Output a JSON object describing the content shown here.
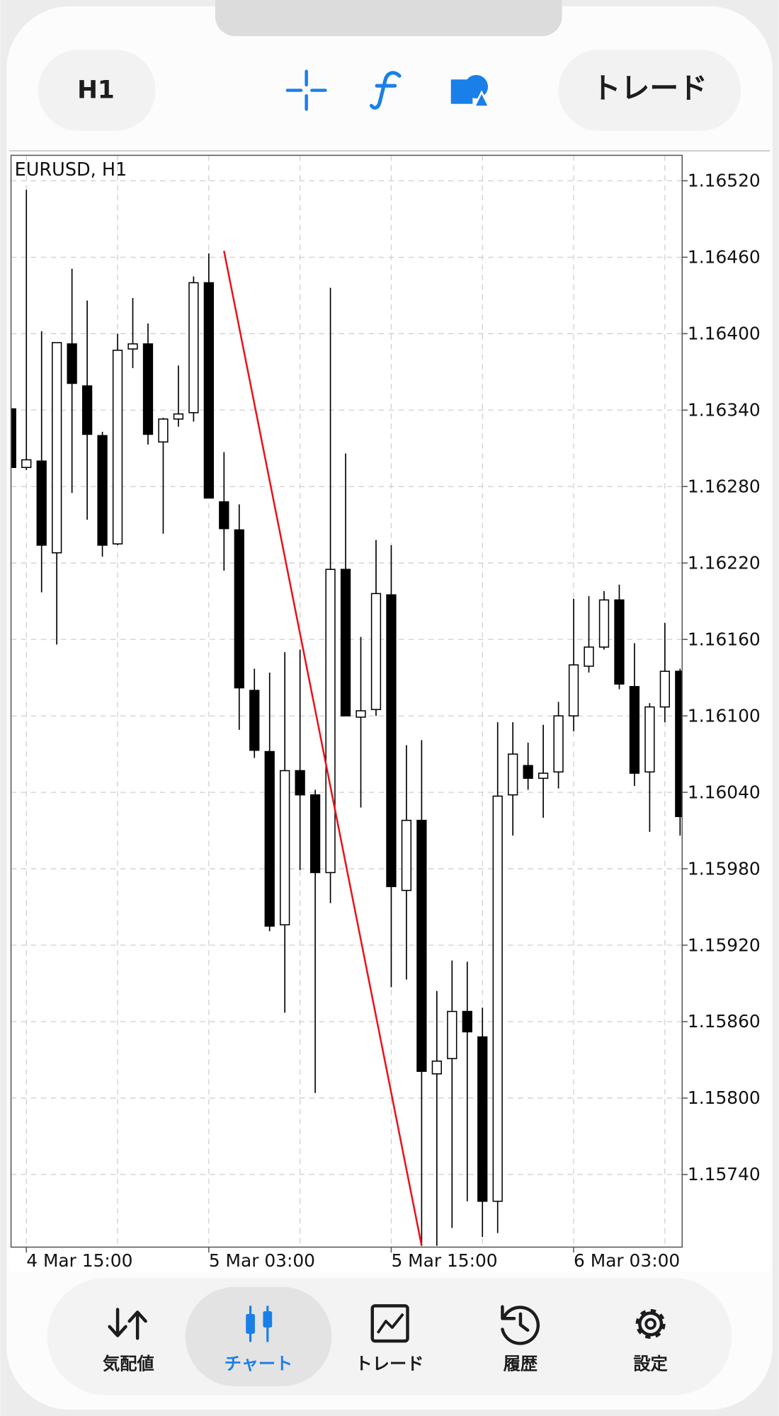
{
  "ui": {
    "timeframe_button": "H1",
    "trade_button": "トレード",
    "tabs": [
      {
        "label": "気配値",
        "active": false
      },
      {
        "label": "チャート",
        "active": true
      },
      {
        "label": "トレード",
        "active": false
      },
      {
        "label": "履歴",
        "active": false
      },
      {
        "label": "設定",
        "active": false
      }
    ]
  },
  "chart_data": {
    "type": "candlestick",
    "title": "EURUSD, H1",
    "categories": [
      null,
      "4 Mar 15:00",
      null,
      null,
      null,
      null,
      null,
      null,
      null,
      null,
      null,
      null,
      null,
      "5 Mar 03:00",
      null,
      null,
      null,
      null,
      null,
      null,
      null,
      null,
      null,
      null,
      null,
      "5 Mar 15:00",
      null,
      null,
      null,
      null,
      null,
      null,
      null,
      null,
      null,
      null,
      null,
      "6 Mar 03:00",
      null,
      null,
      null,
      null,
      null,
      null,
      null
    ],
    "open": [
      1.16341,
      1.16295,
      1.163,
      1.16228,
      1.16392,
      1.16359,
      1.1632,
      1.16235,
      1.16388,
      1.16392,
      1.16315,
      1.16333,
      1.16338,
      1.1644,
      1.16268,
      1.16246,
      1.1612,
      1.16072,
      1.15936,
      1.16057,
      1.16038,
      1.15977,
      1.16215,
      1.16099,
      1.16105,
      1.16195,
      1.15963,
      1.16018,
      1.15819,
      1.15831,
      1.15868,
      1.15848,
      1.15719,
      1.16038,
      1.16061,
      1.16051,
      1.16056,
      1.161,
      1.16139,
      1.16154,
      1.16191,
      1.16123,
      1.16056,
      1.16107,
      1.16135
    ],
    "high": [
      1.16341,
      1.16513,
      1.16402,
      1.16393,
      1.16451,
      1.16426,
      1.16323,
      1.164,
      1.16428,
      1.16408,
      1.16334,
      1.16375,
      1.16445,
      1.16463,
      1.16307,
      1.16266,
      1.16137,
      1.16134,
      1.1615,
      1.16152,
      1.16042,
      1.16436,
      1.16306,
      1.16162,
      1.16238,
      1.16234,
      1.16077,
      1.16081,
      1.15884,
      1.15908,
      1.15907,
      1.15871,
      1.16095,
      1.16095,
      1.16079,
      1.16093,
      1.16111,
      1.16192,
      1.16194,
      1.16198,
      1.16203,
      1.16157,
      1.1611,
      1.16173,
      1.16137
    ],
    "low": [
      1.16295,
      1.16293,
      1.16197,
      1.16156,
      1.16275,
      1.16254,
      1.16225,
      1.16234,
      1.16373,
      1.16313,
      1.16243,
      1.16327,
      1.16331,
      1.16271,
      1.16214,
      1.16089,
      1.16067,
      1.15931,
      1.15867,
      1.15979,
      1.15804,
      1.15953,
      1.161,
      1.16028,
      1.161,
      1.15887,
      1.15893,
      1.15684,
      1.15684,
      1.15698,
      1.15719,
      1.15691,
      1.15694,
      1.16006,
      1.16042,
      1.1602,
      1.16043,
      1.16088,
      1.16134,
      1.16152,
      1.16121,
      1.16045,
      1.16009,
      1.16095,
      1.16006
    ],
    "close": [
      1.16295,
      1.16301,
      1.16234,
      1.16393,
      1.16361,
      1.16321,
      1.16234,
      1.16387,
      1.16392,
      1.16321,
      1.16333,
      1.16337,
      1.1644,
      1.16271,
      1.16247,
      1.16122,
      1.16073,
      1.15935,
      1.16057,
      1.16038,
      1.15977,
      1.16215,
      1.161,
      1.16104,
      1.16196,
      1.15966,
      1.16018,
      1.15821,
      1.15829,
      1.15868,
      1.15852,
      1.15719,
      1.16037,
      1.1607,
      1.16051,
      1.16055,
      1.161,
      1.1614,
      1.16154,
      1.16191,
      1.16125,
      1.16055,
      1.16107,
      1.16135,
      1.16021
    ],
    "up_color": "#ffffff",
    "down_color": "#000000",
    "trendline": {
      "color": "#e8141c",
      "start": [
        14,
        1.16465
      ],
      "end": [
        27,
        1.15684
      ]
    },
    "ylim": [
      1.15683,
      1.1654
    ],
    "yticks": [
      {
        "value": 1.1652,
        "label": "1.16520"
      },
      {
        "value": 1.1646,
        "label": "1.16460"
      },
      {
        "value": 1.164,
        "label": "1.16400"
      },
      {
        "value": 1.1634,
        "label": "1.16340"
      },
      {
        "value": 1.1628,
        "label": "1.16280"
      },
      {
        "value": 1.1622,
        "label": "1.16220"
      },
      {
        "value": 1.1616,
        "label": "1.16160"
      },
      {
        "value": 1.161,
        "label": "1.16100"
      },
      {
        "value": 1.1604,
        "label": "1.16040"
      },
      {
        "value": 1.1598,
        "label": "1.15980"
      },
      {
        "value": 1.1592,
        "label": "1.15920"
      },
      {
        "value": 1.1586,
        "label": "1.15860"
      },
      {
        "value": 1.158,
        "label": "1.15800"
      },
      {
        "value": 1.1574,
        "label": "1.15740"
      }
    ],
    "grid": true
  }
}
